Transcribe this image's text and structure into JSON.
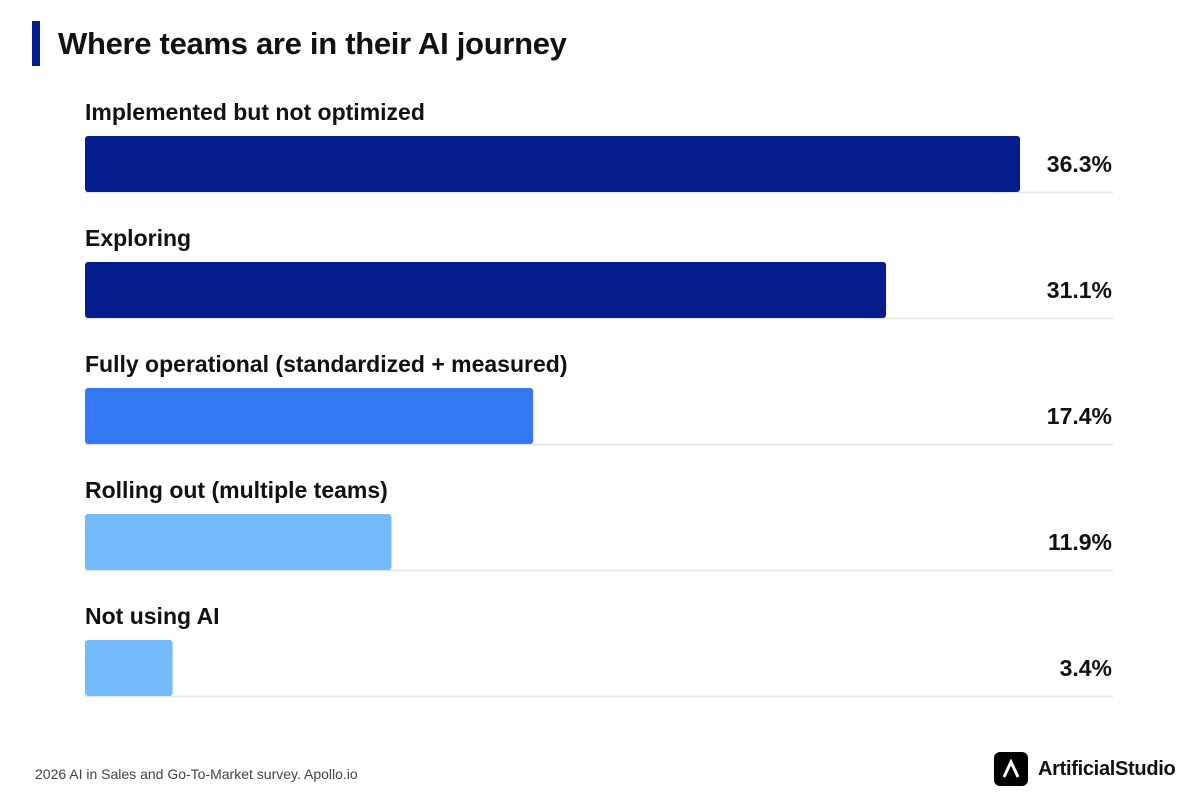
{
  "chart_data": {
    "type": "bar",
    "orientation": "horizontal",
    "title": "Where teams are in their AI journey",
    "categories": [
      "Implemented but not optimized",
      "Exploring",
      "Fully operational (standardized + measured)",
      "Rolling out (multiple teams)",
      "Not using AI"
    ],
    "values": [
      36.3,
      31.1,
      17.4,
      11.9,
      3.4
    ],
    "value_labels": [
      "36.3%",
      "31.1%",
      "17.4%",
      "11.9%",
      "3.4%"
    ],
    "bar_colors": [
      "#041c8c",
      "#041c8c",
      "#3478f6",
      "#74bbfb",
      "#74bbfb"
    ],
    "xlim": [
      0,
      36.3
    ],
    "grid": false,
    "legend": "none"
  },
  "colors": {
    "accent": "#041c8c",
    "baseline": "#e4e4e4"
  },
  "footer": {
    "source": "2026 AI in Sales and Go-To-Market survey. Apollo.io",
    "brand": "ArtificialStudio",
    "brand_icon": "artificialstudio-logo-icon"
  }
}
